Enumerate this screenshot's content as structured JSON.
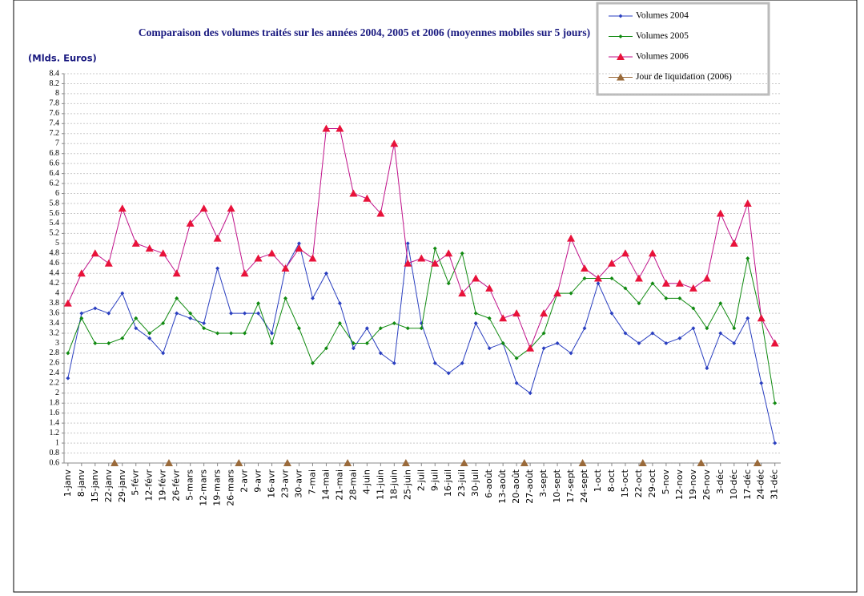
{
  "chart_data": {
    "type": "line",
    "title": "Comparaison des volumes traités sur les années 2004,  2005 et 2006 (moyennes mobiles sur 5 jours)",
    "y_label": "(Mlds. Euros)",
    "x": [
      1,
      8,
      15,
      22,
      29,
      36,
      43,
      50,
      57,
      64,
      71,
      78,
      85,
      92,
      99,
      106,
      113,
      120,
      127,
      134,
      141,
      148,
      155,
      162,
      169,
      176,
      183,
      190,
      197,
      204,
      211,
      218,
      225,
      232,
      239,
      246,
      253,
      260,
      267,
      274,
      281,
      288,
      295,
      302,
      309,
      316,
      323,
      330,
      337,
      344,
      351,
      358,
      365
    ],
    "xlim": [
      -1,
      368
    ],
    "xticks": [
      {
        "value": 1,
        "label": "1-janv"
      },
      {
        "value": 8,
        "label": "8-janv"
      },
      {
        "value": 15,
        "label": "15-janv"
      },
      {
        "value": 22,
        "label": "22-janv"
      },
      {
        "value": 29,
        "label": "29-janv"
      },
      {
        "value": 36,
        "label": "5-févr"
      },
      {
        "value": 43,
        "label": "12-févr"
      },
      {
        "value": 50,
        "label": "19-févr"
      },
      {
        "value": 57,
        "label": "26-févr"
      },
      {
        "value": 64,
        "label": "5-mars"
      },
      {
        "value": 71,
        "label": "12-mars"
      },
      {
        "value": 78,
        "label": "19-mars"
      },
      {
        "value": 85,
        "label": "26-mars"
      },
      {
        "value": 92,
        "label": "2-avr"
      },
      {
        "value": 99,
        "label": "9-avr"
      },
      {
        "value": 106,
        "label": "16-avr"
      },
      {
        "value": 113,
        "label": "23-avr"
      },
      {
        "value": 120,
        "label": "30-avr"
      },
      {
        "value": 127,
        "label": "7-mai"
      },
      {
        "value": 134,
        "label": "14-mai"
      },
      {
        "value": 141,
        "label": "21-mai"
      },
      {
        "value": 148,
        "label": "28-mai"
      },
      {
        "value": 155,
        "label": "4-juin"
      },
      {
        "value": 162,
        "label": "11-juin"
      },
      {
        "value": 169,
        "label": "18-juin"
      },
      {
        "value": 176,
        "label": "25-juin"
      },
      {
        "value": 183,
        "label": "2-juil"
      },
      {
        "value": 190,
        "label": "9-juil"
      },
      {
        "value": 197,
        "label": "16-juil"
      },
      {
        "value": 204,
        "label": "23-juil"
      },
      {
        "value": 211,
        "label": "30-juil"
      },
      {
        "value": 218,
        "label": "6-août"
      },
      {
        "value": 225,
        "label": "13-août"
      },
      {
        "value": 232,
        "label": "20-août"
      },
      {
        "value": 239,
        "label": "27-août"
      },
      {
        "value": 246,
        "label": "3-sept"
      },
      {
        "value": 253,
        "label": "10-sept"
      },
      {
        "value": 260,
        "label": "17-sept"
      },
      {
        "value": 267,
        "label": "24-sept"
      },
      {
        "value": 274,
        "label": "1-oct"
      },
      {
        "value": 281,
        "label": "8-oct"
      },
      {
        "value": 288,
        "label": "15-oct"
      },
      {
        "value": 295,
        "label": "22-oct"
      },
      {
        "value": 302,
        "label": "29-oct"
      },
      {
        "value": 309,
        "label": "5-nov"
      },
      {
        "value": 316,
        "label": "12-nov"
      },
      {
        "value": 323,
        "label": "19-nov"
      },
      {
        "value": 330,
        "label": "26-nov"
      },
      {
        "value": 337,
        "label": "3-déc"
      },
      {
        "value": 344,
        "label": "10-déc"
      },
      {
        "value": 351,
        "label": "17-déc"
      },
      {
        "value": 358,
        "label": "24-déc"
      },
      {
        "value": 365,
        "label": "31-déc"
      }
    ],
    "ylim": [
      0.6,
      8.4
    ],
    "yticks": [
      0.6,
      0.8,
      1,
      1.2,
      1.4,
      1.6,
      1.8,
      2,
      2.2,
      2.4,
      2.6,
      2.8,
      3,
      3.2,
      3.4,
      3.6,
      3.8,
      4,
      4.2,
      4.4,
      4.6,
      4.8,
      5,
      5.2,
      5.4,
      5.6,
      5.8,
      6,
      6.2,
      6.4,
      6.6,
      6.8,
      7,
      7.2,
      7.4,
      7.6,
      7.8,
      8,
      8.2,
      8.4
    ],
    "grid": true,
    "legend": "top-right",
    "series": [
      {
        "name": "Volumes 2004",
        "color": "#2a3fc0",
        "marker": "diamond",
        "values": [
          2.3,
          3.6,
          3.7,
          3.6,
          4.0,
          3.3,
          3.1,
          2.8,
          3.6,
          3.5,
          3.4,
          4.5,
          3.6,
          3.6,
          3.6,
          3.2,
          4.5,
          5.0,
          3.9,
          4.4,
          3.8,
          2.9,
          3.3,
          2.8,
          2.6,
          5.0,
          3.4,
          2.6,
          2.4,
          2.6,
          3.4,
          2.9,
          3.0,
          2.2,
          2.0,
          2.9,
          3.0,
          2.8,
          3.3,
          4.2,
          3.6,
          3.2,
          3.0,
          3.2,
          3.0,
          3.1,
          3.3,
          2.5,
          3.2,
          3.0,
          3.5,
          2.2,
          1.0
        ]
      },
      {
        "name": "Volumes 2005",
        "color": "#108a10",
        "marker": "diamond",
        "values": [
          2.8,
          3.5,
          3.0,
          3.0,
          3.1,
          3.5,
          3.2,
          3.4,
          3.9,
          3.6,
          3.3,
          3.2,
          3.2,
          3.2,
          3.8,
          3.0,
          3.9,
          3.3,
          2.6,
          2.9,
          3.4,
          3.0,
          3.0,
          3.3,
          3.4,
          3.3,
          3.3,
          4.9,
          4.2,
          4.8,
          3.6,
          3.5,
          3.0,
          2.7,
          2.9,
          3.2,
          4.0,
          4.0,
          4.3,
          4.3,
          4.3,
          4.1,
          3.8,
          4.2,
          3.9,
          3.9,
          3.7,
          3.3,
          3.8,
          3.3,
          4.7,
          3.5,
          1.8
        ]
      },
      {
        "name": "Volumes 2006",
        "color": "#c0128a",
        "marker": "triangle",
        "marker_color": "#e8123a",
        "values": [
          3.8,
          4.4,
          4.8,
          4.6,
          5.7,
          5.0,
          4.9,
          4.8,
          4.4,
          5.4,
          5.7,
          5.1,
          5.7,
          4.4,
          4.7,
          4.8,
          4.5,
          4.9,
          4.7,
          7.3,
          7.3,
          6.0,
          5.9,
          5.6,
          7.0,
          4.6,
          4.7,
          4.6,
          4.8,
          4.0,
          4.3,
          4.1,
          3.5,
          3.6,
          2.9,
          3.6,
          4.0,
          5.1,
          4.5,
          4.3,
          4.6,
          4.8,
          4.3,
          4.8,
          4.2,
          4.2,
          4.1,
          4.3,
          5.6,
          5.0,
          5.8,
          3.5,
          3.0
        ]
      },
      {
        "name": "Jour de liquidation (2006)",
        "color": "#9a6a3a",
        "marker": "triangle",
        "line": false,
        "x": [
          25,
          53,
          89,
          114,
          145,
          175,
          205,
          236,
          266,
          297,
          327,
          356
        ],
        "values": [
          0.6,
          0.6,
          0.6,
          0.6,
          0.6,
          0.6,
          0.6,
          0.6,
          0.6,
          0.6,
          0.6,
          0.6
        ]
      }
    ]
  }
}
